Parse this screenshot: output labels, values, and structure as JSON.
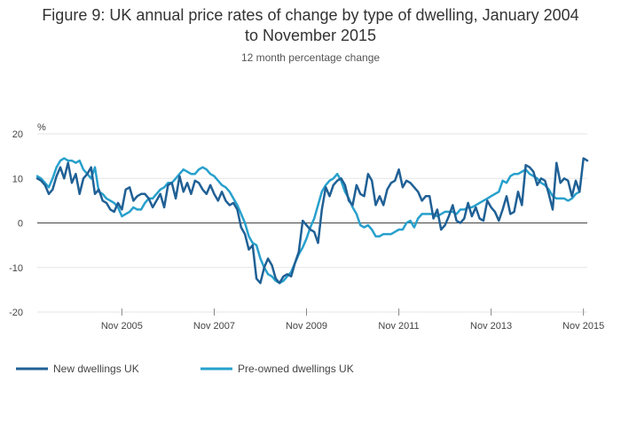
{
  "chart_data": {
    "type": "line",
    "title": "Figure 9: UK annual price rates of change by type of dwelling, January 2004 to November 2015",
    "title_lines": [
      "Figure 9: UK annual price rates of change by type of dwelling, January 2004",
      "to November 2015"
    ],
    "subtitle": "12 month percentage change",
    "ylabel": "%",
    "xlabel": "",
    "ylim": [
      -20,
      20
    ],
    "y_ticks": [
      20,
      10,
      0,
      -10,
      -20
    ],
    "x_start": "Jan 2004",
    "x_end": "Nov 2015",
    "x_ticks": [
      {
        "label": "Nov 2005",
        "index": 22
      },
      {
        "label": "Nov 2007",
        "index": 46
      },
      {
        "label": "Nov 2009",
        "index": 70
      },
      {
        "label": "Nov 2011",
        "index": 94
      },
      {
        "label": "Nov 2013",
        "index": 118
      },
      {
        "label": "Nov 2015",
        "index": 142
      }
    ],
    "grid": true,
    "legend_position": "bottom-left",
    "series": [
      {
        "name": "New dwellings UK",
        "color": "#206095",
        "values": [
          10,
          9.5,
          8.5,
          6.5,
          7.5,
          10.5,
          12.5,
          10,
          13.5,
          9,
          11,
          6.5,
          10,
          11,
          12.5,
          6.5,
          7.5,
          5,
          4.5,
          3,
          2.5,
          4.5,
          3,
          7.5,
          8,
          5,
          6,
          6.5,
          6.5,
          5.5,
          3.5,
          5,
          6.5,
          3.5,
          8.5,
          9,
          5.5,
          10.5,
          7,
          9,
          6.5,
          9.5,
          9,
          7.5,
          6.5,
          8.5,
          6.5,
          5,
          7,
          5,
          4,
          4.5,
          3,
          -1,
          -2.5,
          -6,
          -5,
          -12.5,
          -13.5,
          -10,
          -8,
          -9.5,
          -12.5,
          -13.5,
          -12,
          -11.5,
          -12,
          -9,
          -6.5,
          0.5,
          -0.5,
          -1.5,
          -2,
          -4.5,
          3,
          8,
          6,
          8.5,
          9.5,
          10,
          8.5,
          5,
          4,
          8.5,
          6.5,
          6,
          11,
          9.5,
          4,
          6,
          4,
          7.5,
          9,
          9.5,
          12,
          8,
          9.5,
          9,
          8,
          7,
          5,
          6,
          6,
          1,
          3,
          -1.5,
          -0.5,
          1.5,
          4,
          0.5,
          0,
          1,
          4.5,
          1.5,
          3.5,
          1,
          0.5,
          5,
          3.5,
          2.5,
          0.5,
          3,
          6,
          2,
          2.5,
          7,
          4,
          13,
          12.5,
          11.5,
          8.5,
          10,
          9.5,
          6.5,
          3,
          13.5,
          9,
          10,
          9.5,
          6,
          9.5,
          7,
          14.5,
          14
        ]
      },
      {
        "name": "Pre-owned dwellings UK",
        "color": "#27a0cc",
        "values": [
          10.5,
          10,
          9,
          8,
          10,
          12.5,
          14,
          14.5,
          14,
          14,
          13.5,
          14,
          12,
          11,
          10,
          12.5,
          7,
          6.5,
          5.5,
          5,
          4.5,
          3.5,
          1.5,
          2,
          2.5,
          3.5,
          3,
          3,
          4.5,
          5.5,
          5.5,
          6.5,
          7.5,
          8,
          9,
          9,
          10,
          11,
          12,
          11.5,
          11,
          11,
          12,
          12.5,
          12,
          11,
          10.5,
          9.5,
          8.5,
          8,
          7,
          5.5,
          4,
          2,
          0,
          -3,
          -4.5,
          -5,
          -8,
          -10,
          -11.5,
          -12,
          -13,
          -13.5,
          -13,
          -12,
          -11,
          -9,
          -7,
          -5.5,
          -3.5,
          -1,
          1,
          4,
          7,
          8.5,
          9.5,
          10,
          11,
          9.5,
          7,
          5.5,
          3.5,
          2,
          -0.5,
          -1,
          -0.5,
          -1.5,
          -3,
          -3,
          -2.5,
          -2.5,
          -2.5,
          -2,
          -1.5,
          -1.5,
          0,
          0.5,
          -1,
          1,
          2,
          2,
          2,
          2,
          1.5,
          2,
          2.5,
          2.5,
          2.5,
          2,
          3,
          3,
          3.5,
          3.5,
          4,
          4.5,
          5,
          5.5,
          6,
          6.5,
          7,
          9.5,
          9,
          10.5,
          11,
          11,
          11.5,
          12,
          11,
          10.5,
          10,
          9,
          8.5,
          7.5,
          6,
          5.5,
          5.5,
          5.5,
          5,
          5.5,
          6.5,
          7
        ]
      }
    ]
  }
}
